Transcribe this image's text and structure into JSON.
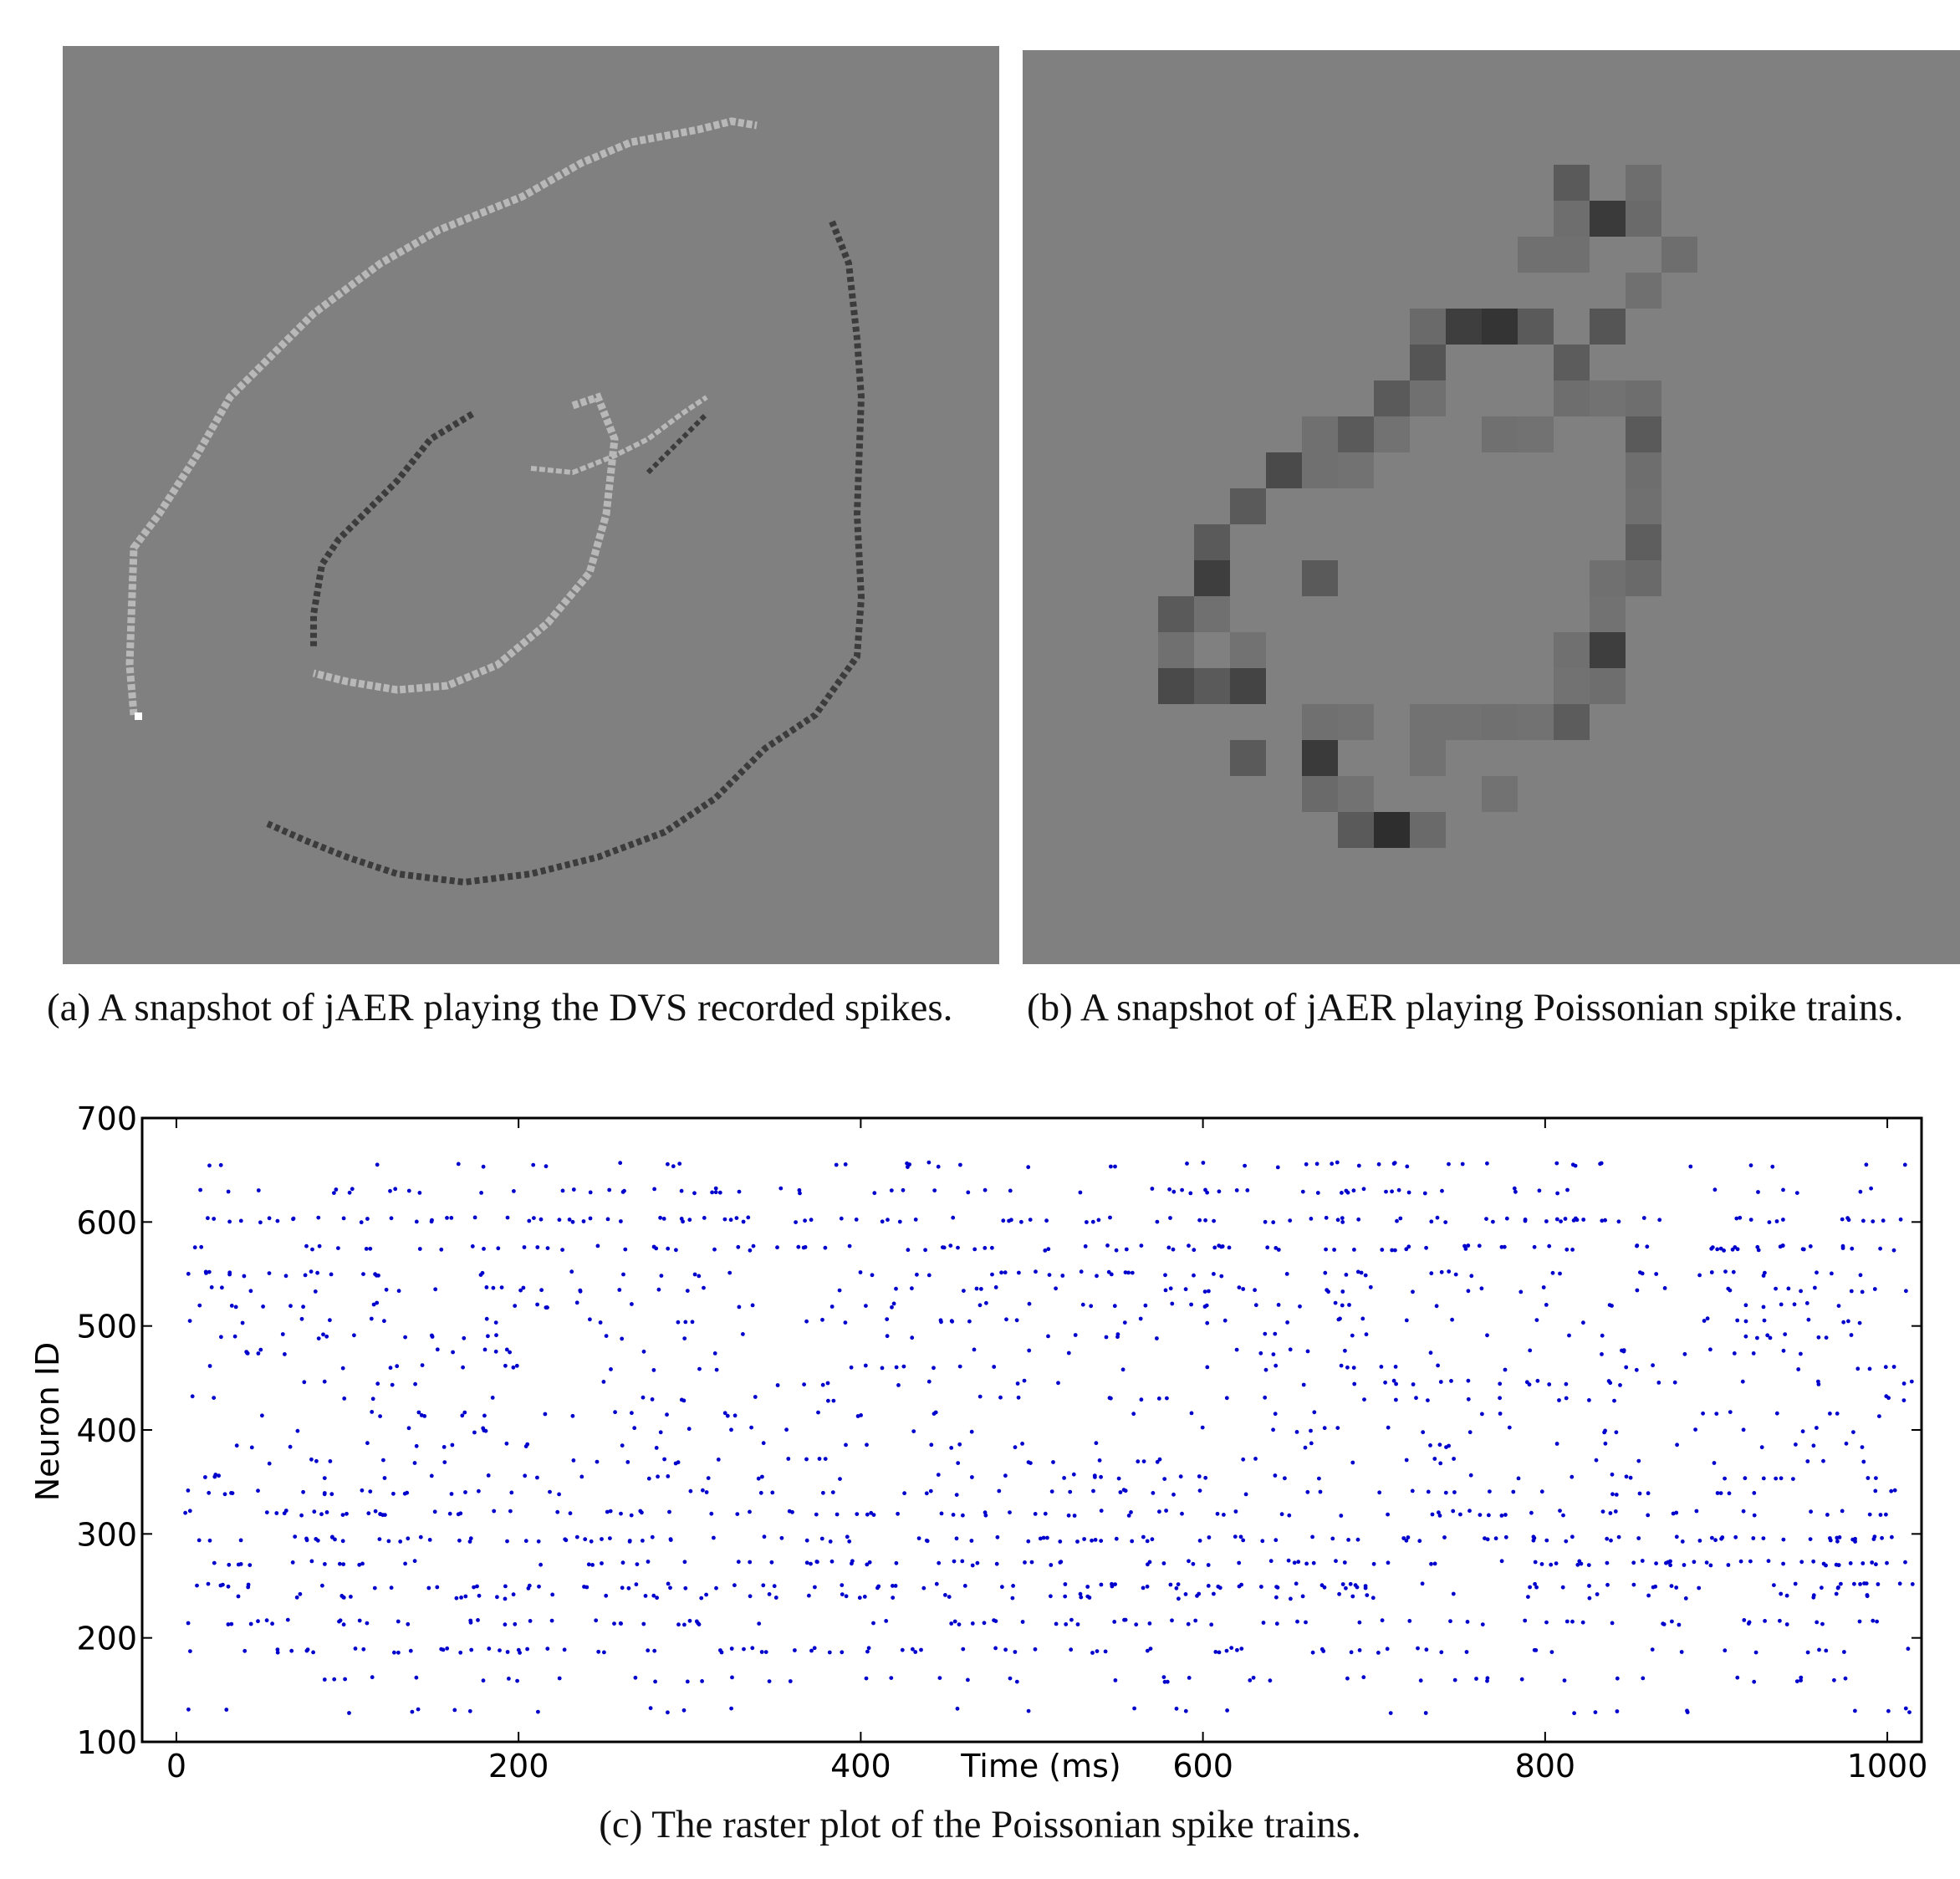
{
  "panels": {
    "a": {
      "caption": "(a) A snapshot of jAER playing the DVS recorded spikes."
    },
    "b": {
      "caption": "(b) A snapshot of jAER playing Poissonian spike trains."
    },
    "c": {
      "caption": "(c) The raster plot of the Poissonian spike trains."
    }
  },
  "colors": {
    "snapshot_background": "#808080",
    "spike_dot": "#0000cc"
  },
  "chart_data": {
    "type": "scatter",
    "title": "",
    "xlabel": "Time (ms)",
    "ylabel": "Neuron ID",
    "xlim": [
      -20,
      1020
    ],
    "ylim": [
      100,
      700
    ],
    "xticks": [
      0,
      200,
      400,
      600,
      800,
      1000
    ],
    "yticks": [
      100,
      200,
      300,
      400,
      500,
      600,
      700
    ],
    "grid": false,
    "marker_color": "#0000cc",
    "note_neuron_rows": "spike rows occur at neuron IDs ~130-655; densest near 190-310 and 570-605",
    "rows": [
      {
        "neuron": 655,
        "rate": 0.3
      },
      {
        "neuron": 630,
        "rate": 0.45
      },
      {
        "neuron": 602,
        "rate": 0.7
      },
      {
        "neuron": 575,
        "rate": 0.65
      },
      {
        "neuron": 550,
        "rate": 0.45
      },
      {
        "neuron": 535,
        "rate": 0.35
      },
      {
        "neuron": 520,
        "rate": 0.3
      },
      {
        "neuron": 505,
        "rate": 0.28
      },
      {
        "neuron": 490,
        "rate": 0.25
      },
      {
        "neuron": 475,
        "rate": 0.22
      },
      {
        "neuron": 460,
        "rate": 0.25
      },
      {
        "neuron": 445,
        "rate": 0.25
      },
      {
        "neuron": 430,
        "rate": 0.22
      },
      {
        "neuron": 415,
        "rate": 0.22
      },
      {
        "neuron": 400,
        "rate": 0.2
      },
      {
        "neuron": 385,
        "rate": 0.22
      },
      {
        "neuron": 370,
        "rate": 0.25
      },
      {
        "neuron": 355,
        "rate": 0.3
      },
      {
        "neuron": 340,
        "rate": 0.4
      },
      {
        "neuron": 320,
        "rate": 0.6
      },
      {
        "neuron": 295,
        "rate": 0.75
      },
      {
        "neuron": 272,
        "rate": 0.65
      },
      {
        "neuron": 250,
        "rate": 0.6
      },
      {
        "neuron": 240,
        "rate": 0.4
      },
      {
        "neuron": 215,
        "rate": 0.55
      },
      {
        "neuron": 188,
        "rate": 0.55
      },
      {
        "neuron": 160,
        "rate": 0.3
      },
      {
        "neuron": 130,
        "rate": 0.18
      }
    ]
  }
}
